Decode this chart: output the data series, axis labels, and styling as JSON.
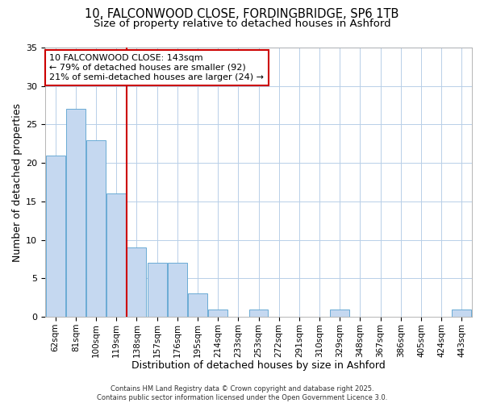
{
  "title1": "10, FALCONWOOD CLOSE, FORDINGBRIDGE, SP6 1TB",
  "title2": "Size of property relative to detached houses in Ashford",
  "xlabel": "Distribution of detached houses by size in Ashford",
  "ylabel": "Number of detached properties",
  "bar_labels": [
    "62sqm",
    "81sqm",
    "100sqm",
    "119sqm",
    "138sqm",
    "157sqm",
    "176sqm",
    "195sqm",
    "214sqm",
    "233sqm",
    "253sqm",
    "272sqm",
    "291sqm",
    "310sqm",
    "329sqm",
    "348sqm",
    "367sqm",
    "386sqm",
    "405sqm",
    "424sqm",
    "443sqm"
  ],
  "bar_values": [
    21,
    27,
    23,
    16,
    9,
    7,
    7,
    3,
    1,
    0,
    1,
    0,
    0,
    0,
    1,
    0,
    0,
    0,
    0,
    0,
    1
  ],
  "bar_color": "#c5d8f0",
  "bar_edge_color": "#6aaad4",
  "reference_line_color": "#cc0000",
  "annotation_text": "10 FALCONWOOD CLOSE: 143sqm\n← 79% of detached houses are smaller (92)\n21% of semi-detached houses are larger (24) →",
  "annotation_box_color": "#ffffff",
  "annotation_box_edge": "#cc0000",
  "ylim": [
    0,
    35
  ],
  "yticks": [
    0,
    5,
    10,
    15,
    20,
    25,
    30,
    35
  ],
  "footer_text": "Contains HM Land Registry data © Crown copyright and database right 2025.\nContains public sector information licensed under the Open Government Licence 3.0.",
  "bg_color": "#ffffff",
  "plot_bg_color": "#ffffff",
  "grid_color": "#b8cfe8"
}
